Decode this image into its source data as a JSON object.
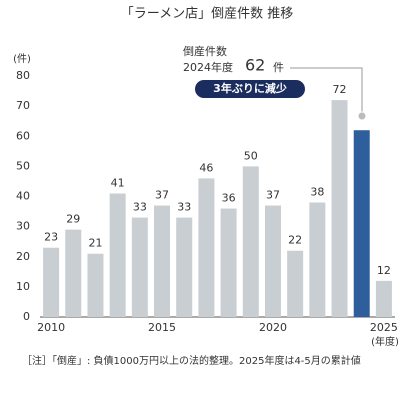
{
  "chart_data": {
    "type": "bar",
    "title": "「ラーメン店」倒産件数 推移",
    "y_label": "(件)",
    "x_label": "(年度)",
    "categories": [
      "2010",
      null,
      null,
      null,
      null,
      "2015",
      null,
      null,
      null,
      null,
      "2020",
      null,
      null,
      null,
      null,
      "2025"
    ],
    "values": [
      23,
      29,
      21,
      41,
      33,
      37,
      33,
      46,
      36,
      50,
      37,
      22,
      38,
      72,
      62,
      12
    ],
    "color": "#c9ced3",
    "highlight": {
      "index": 14,
      "color": "#2e5f9c"
    },
    "ylim": [
      0,
      80
    ],
    "yticks": [
      0,
      10,
      20,
      30,
      40,
      50,
      60,
      70,
      80
    ],
    "grid": false,
    "annotation": {
      "line1": "倒産件数",
      "line2": "2024年度",
      "unit": "件",
      "badge": "3年ぶりに減少"
    },
    "footnote": "［注］「倒産」: 負債1000万円以上の法的整理。2025年度は4-5月の累計値"
  }
}
